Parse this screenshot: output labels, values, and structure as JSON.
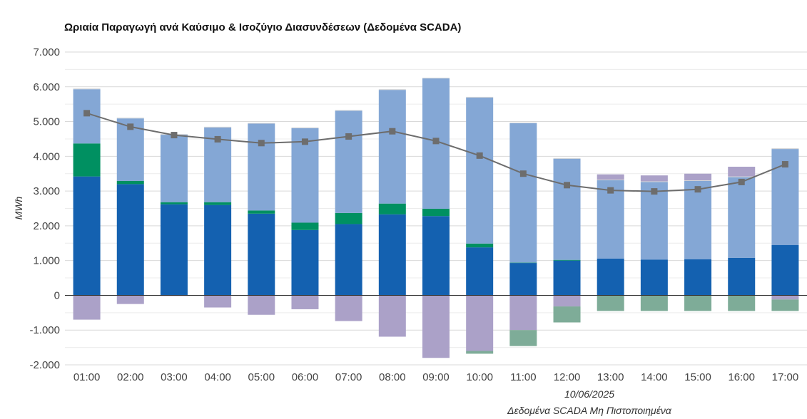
{
  "chart_data": {
    "type": "bar",
    "stacked": true,
    "title": "Ωριαία Παραγωγή ανά Καύσιμο & Ισοζύγιο Διασυνδέσεων (Δεδομένα SCADA)",
    "ylabel": "MWh",
    "xlabel": "",
    "date_label": "10/06/2025",
    "note": "Δεδομένα SCADA Μη Πιστοποιημένα",
    "ylim": [
      -2000,
      7000
    ],
    "yticks": [
      -2000,
      -1000,
      0,
      1000,
      2000,
      3000,
      4000,
      5000,
      6000,
      7000
    ],
    "ytick_labels": [
      "-2.000",
      "-1.000",
      "0",
      "1.000",
      "2.000",
      "3.000",
      "4.000",
      "5.000",
      "6.000",
      "7.000"
    ],
    "grid": true,
    "legend": "none",
    "categories": [
      "01:00",
      "02:00",
      "03:00",
      "04:00",
      "05:00",
      "06:00",
      "07:00",
      "08:00",
      "09:00",
      "10:00",
      "11:00",
      "12:00",
      "13:00",
      "14:00",
      "15:00",
      "16:00",
      "17:00"
    ],
    "positive_series": [
      {
        "color": "#1461b0",
        "values": [
          3420,
          3200,
          2620,
          2600,
          2350,
          1880,
          2050,
          2330,
          2280,
          1380,
          930,
          1000,
          1060,
          1030,
          1040,
          1080,
          1450
        ]
      },
      {
        "color": "#009061",
        "values": [
          950,
          90,
          60,
          80,
          90,
          210,
          320,
          310,
          210,
          110,
          10,
          20,
          0,
          0,
          0,
          0,
          0
        ]
      },
      {
        "color": "#84a7d5",
        "values": [
          1560,
          1800,
          1940,
          2150,
          2500,
          2720,
          2940,
          3270,
          3750,
          4200,
          4010,
          2910,
          2250,
          2230,
          2250,
          2320,
          2760
        ]
      },
      {
        "color": "#d2d4d6",
        "values": [
          20,
          20,
          20,
          20,
          20,
          20,
          20,
          20,
          20,
          20,
          20,
          20,
          20,
          20,
          20,
          20,
          20
        ]
      },
      {
        "color": "#aba1c8",
        "values": [
          0,
          0,
          0,
          0,
          0,
          0,
          0,
          0,
          0,
          0,
          0,
          0,
          150,
          170,
          190,
          280,
          0
        ]
      }
    ],
    "negative_series": [
      {
        "color": "#aba1c8",
        "values": [
          -700,
          -250,
          -20,
          -350,
          -560,
          -400,
          -740,
          -1190,
          -1800,
          -1600,
          -1000,
          -320,
          0,
          0,
          0,
          0,
          -120
        ]
      },
      {
        "color": "#7eac98",
        "values": [
          0,
          0,
          0,
          0,
          0,
          0,
          0,
          0,
          0,
          -80,
          -460,
          -460,
          -450,
          -450,
          -450,
          -450,
          -330
        ]
      }
    ],
    "line_series": {
      "color": "#6d6d6d",
      "values": [
        5240,
        4850,
        4610,
        4490,
        4380,
        4420,
        4570,
        4720,
        4440,
        4020,
        3500,
        3170,
        3020,
        2990,
        3050,
        3260,
        3770
      ]
    }
  }
}
